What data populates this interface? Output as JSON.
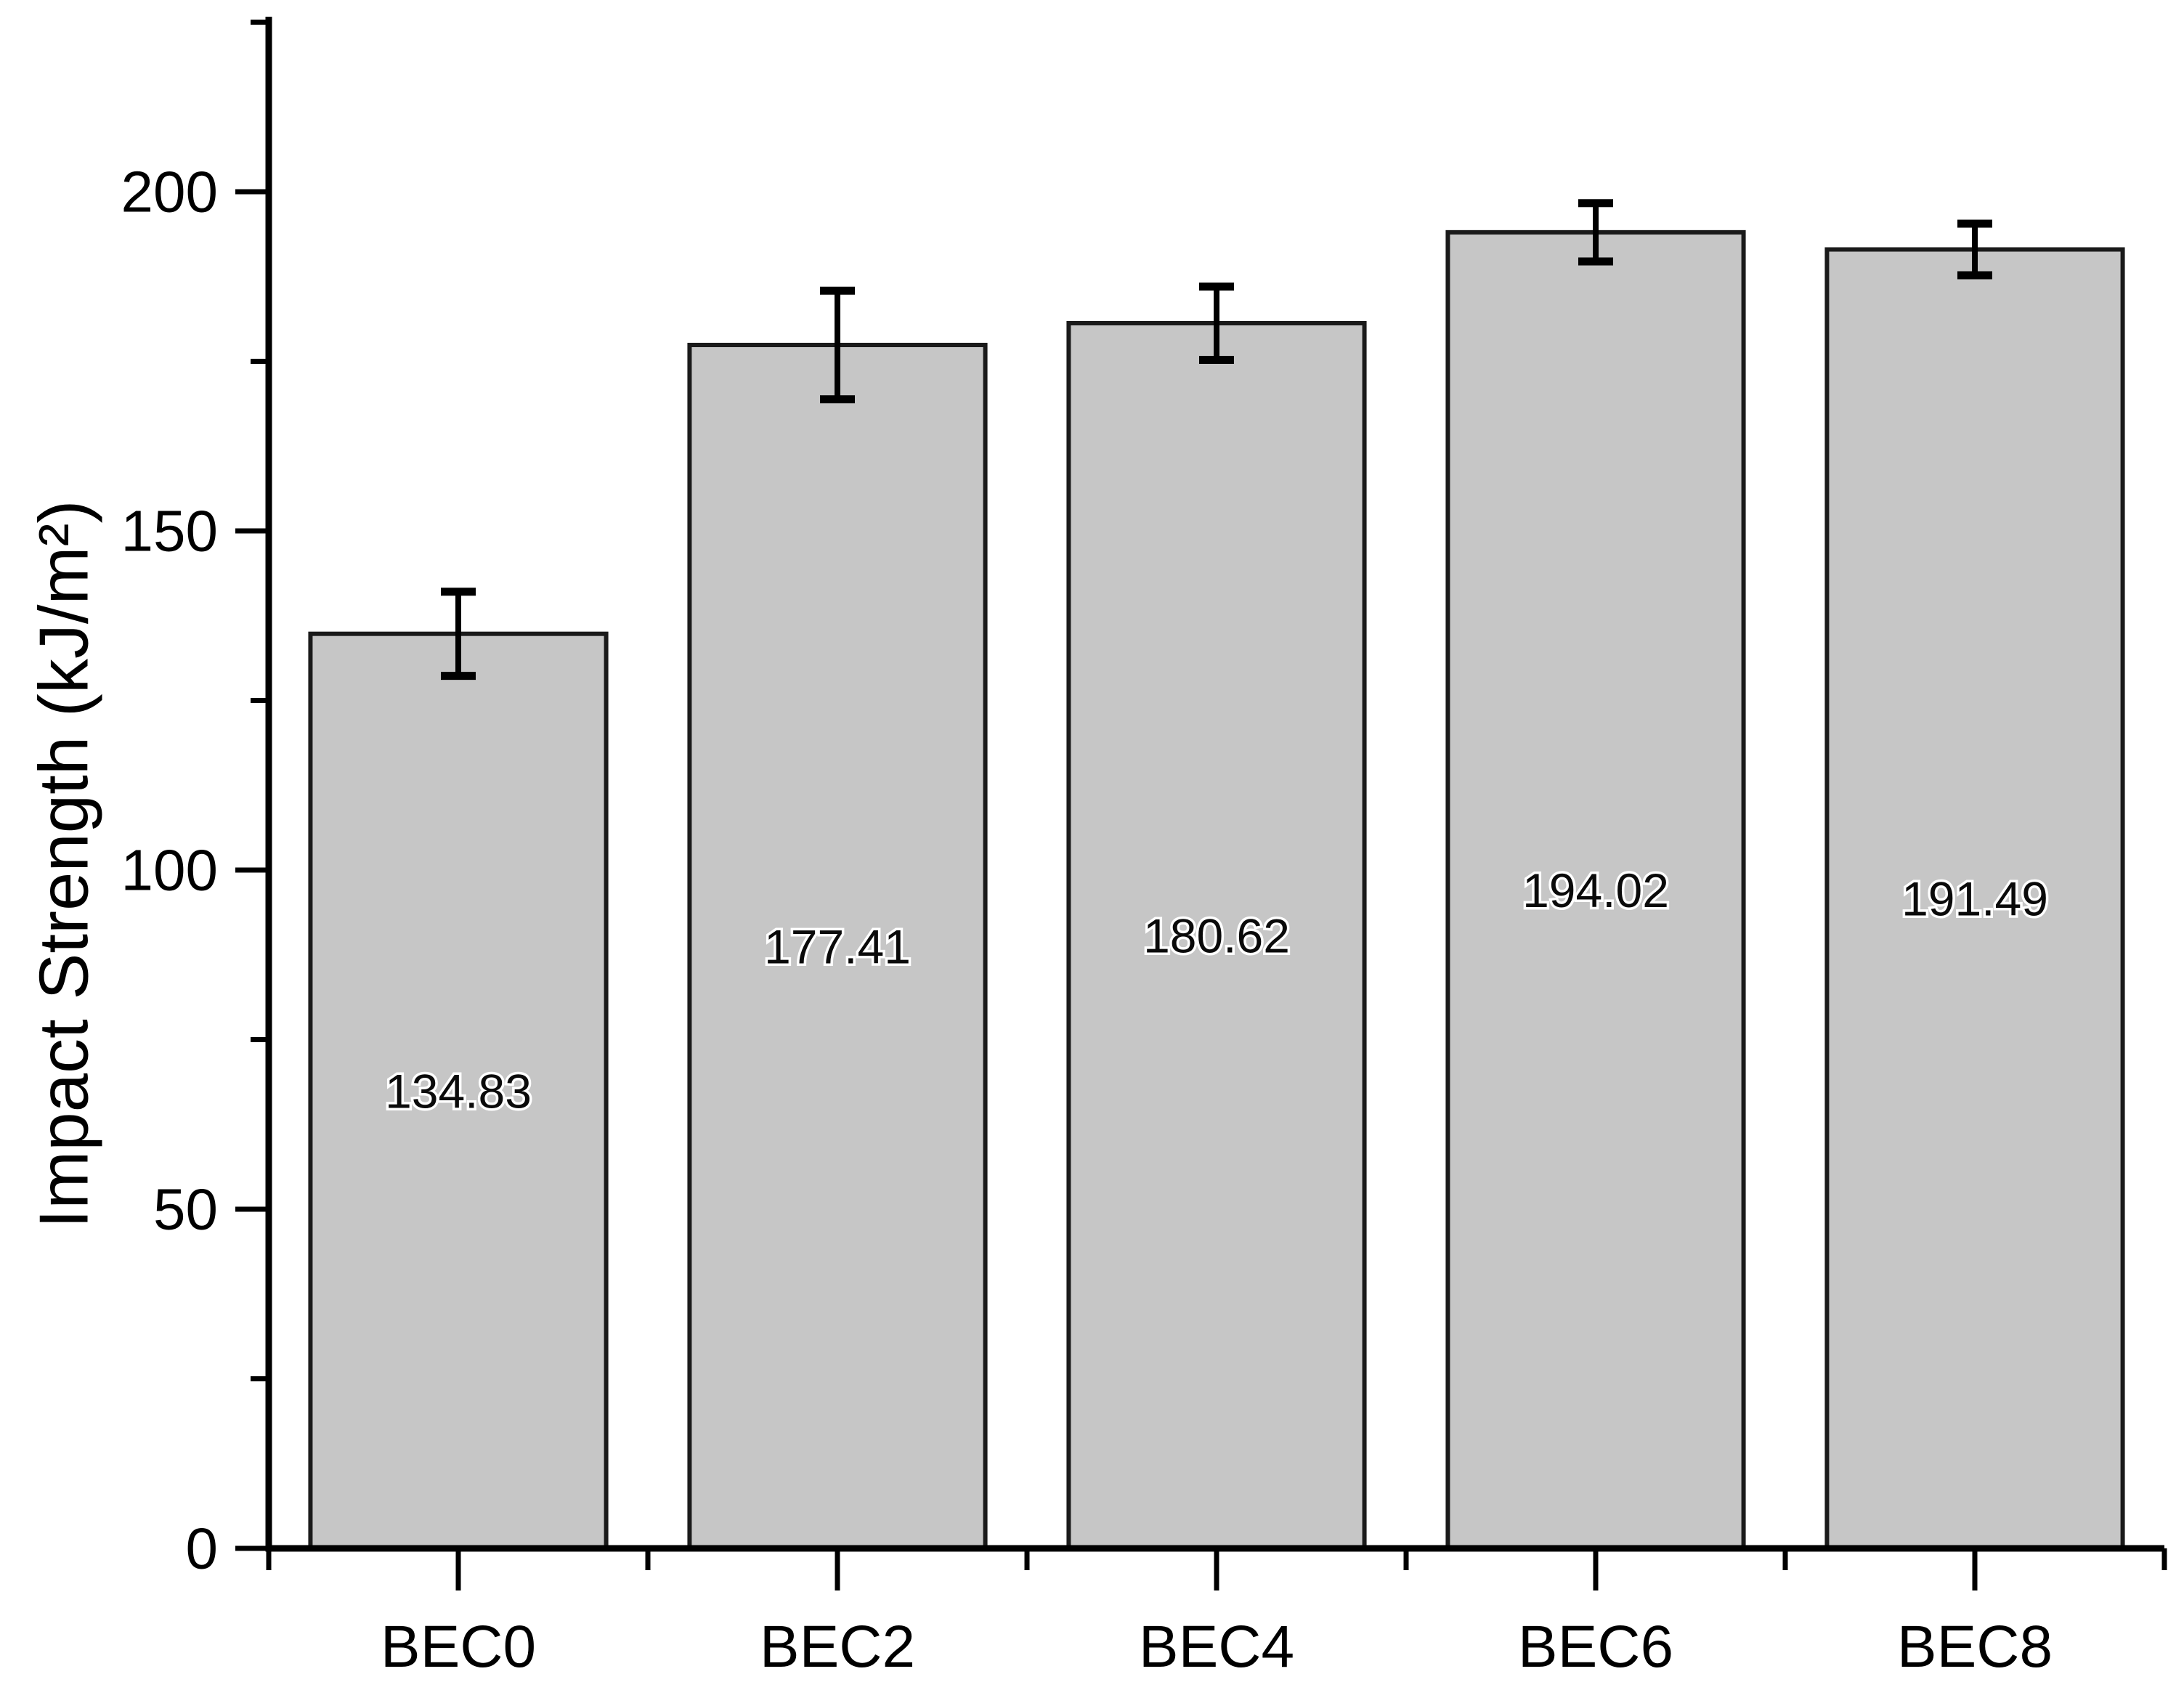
{
  "figure": {
    "background": "#ffffff"
  },
  "chart_data": {
    "type": "bar",
    "title": "",
    "xlabel": "",
    "ylabel": "Impact Strength (kJ/m²)",
    "categories": [
      "BEC0",
      "BEC2",
      "BEC4",
      "BEC6",
      "BEC8"
    ],
    "values": [
      134.83,
      177.41,
      180.62,
      194.02,
      191.49
    ],
    "value_labels": [
      "134.83",
      "177.41",
      "180.62",
      "194.02",
      "191.49"
    ],
    "errors": [
      6.2,
      8.0,
      5.4,
      4.3,
      3.8
    ],
    "ylim": [
      0,
      225
    ],
    "y_major_ticks": [
      0,
      50,
      100,
      150,
      200
    ],
    "y_tick_labels": [
      "0",
      "50",
      "100",
      "150",
      "200"
    ],
    "y_minor_ticks": [
      25,
      75,
      125,
      175,
      225
    ],
    "grid": false,
    "legend": "none",
    "bar_fill": "#c6c6c6",
    "bar_border": "#1a1a1a",
    "axis_color": "#000000"
  }
}
